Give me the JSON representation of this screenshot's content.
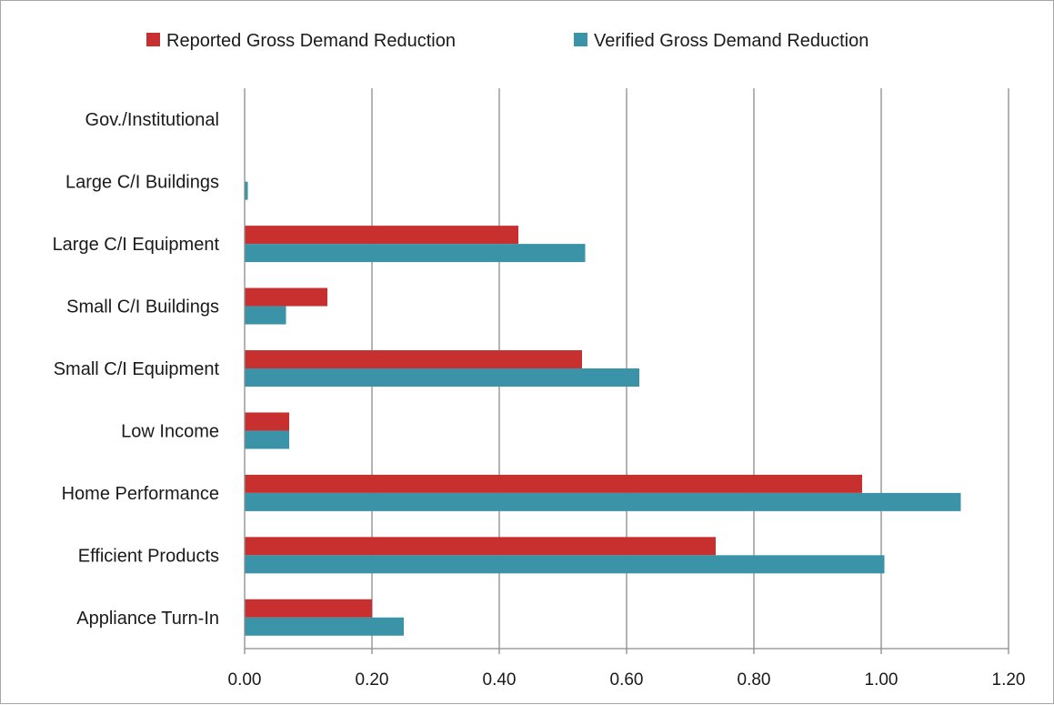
{
  "chart_data": {
    "type": "bar",
    "orientation": "horizontal",
    "categories": [
      "Appliance Turn-In",
      "Efficient Products",
      "Home Performance",
      "Low Income",
      "Small C/I Equipment",
      "Small C/I Buildings",
      "Large C/I Equipment",
      "Large C/I Buildings",
      "Gov./Institutional"
    ],
    "series": [
      {
        "name": "Reported Gross Demand Reduction",
        "color": "#c8302f",
        "values": [
          0.2,
          0.74,
          0.97,
          0.07,
          0.53,
          0.13,
          0.43,
          0.0,
          0.0
        ]
      },
      {
        "name": "Verified Gross Demand Reduction",
        "color": "#3a93a6",
        "values": [
          0.25,
          1.005,
          1.125,
          0.07,
          0.62,
          0.065,
          0.535,
          0.005,
          0.0
        ]
      }
    ],
    "xlim": [
      0,
      1.2
    ],
    "xticks": [
      "0.00",
      "0.20",
      "0.40",
      "0.60",
      "0.80",
      "1.00",
      "1.20"
    ],
    "title": "",
    "xlabel": "",
    "ylabel": "",
    "grid": "vertical",
    "legend": "top-center"
  }
}
